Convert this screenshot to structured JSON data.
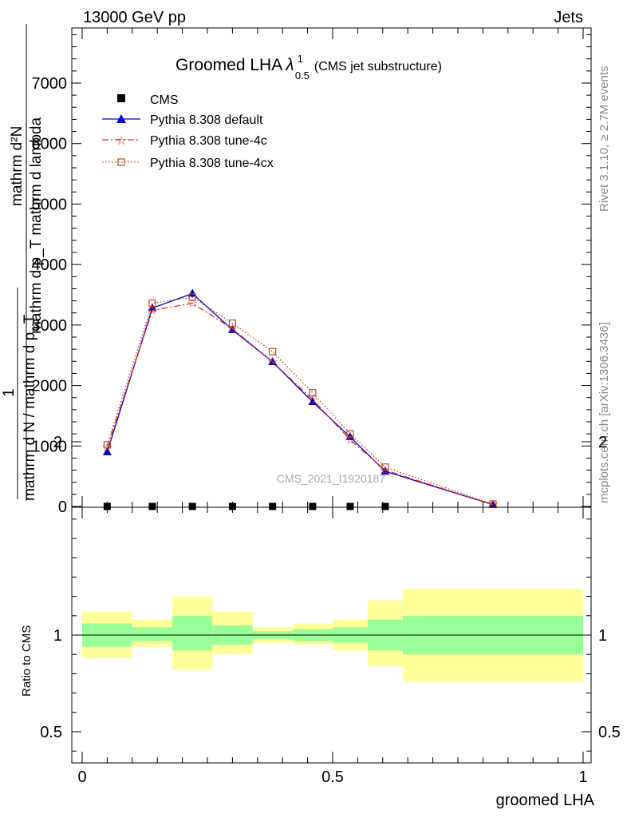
{
  "header": {
    "left": "13000 GeV pp",
    "right": "Jets",
    "side_top": "Rivet 3.1.10, ≥ 2.7M events",
    "side_bottom": "mcplots.cern.ch [arXiv:1306.3436]",
    "watermark": "CMS_2021_I1920187"
  },
  "title": {
    "prefix": "Groomed LHA",
    "lambda": "λ",
    "sup": "1",
    "sub": "0.5",
    "suffix": "(CMS jet substructure)"
  },
  "colors": {
    "default": "#0000cc",
    "tune4c": "#e03030",
    "tune4cx": "#c05020",
    "band_inner": "#99ff99",
    "band_outer": "#ffff99"
  },
  "chart_data": [
    {
      "type": "line",
      "name": "main",
      "ylabel_parts": {
        "numerator": "mathrm d²N",
        "denominator": "mathrm d p_T mathrm d lambda",
        "left_num": "1",
        "left_den": "mathrm d N / mathrm d p_T"
      },
      "xlim": [
        0,
        1
      ],
      "ylim": [
        0,
        8000
      ],
      "yticks": [
        {
          "v": 0,
          "label": "0"
        },
        {
          "v": 1000,
          "label": "1000"
        },
        {
          "v": 2000,
          "label": "2000"
        },
        {
          "v": 3000,
          "label": "3000"
        },
        {
          "v": 4000,
          "label": "4000"
        },
        {
          "v": 5000,
          "label": "5000"
        },
        {
          "v": 6000,
          "label": "6000"
        },
        {
          "v": 7000,
          "label": "7000"
        }
      ],
      "legend": [
        {
          "key": "cms",
          "label": "CMS"
        },
        {
          "key": "default",
          "label": "Pythia 8.308 default"
        },
        {
          "key": "tune4c",
          "label": "Pythia 8.308 tune-4c"
        },
        {
          "key": "tune4cx",
          "label": "Pythia 8.308 tune-4cx"
        }
      ],
      "cms": {
        "x": [
          0.05,
          0.14,
          0.22,
          0.3,
          0.38,
          0.46,
          0.535,
          0.605
        ],
        "y": [
          0,
          0,
          0,
          0,
          0,
          0,
          0,
          0
        ]
      },
      "series": [
        {
          "key": "default",
          "x": [
            0.05,
            0.14,
            0.22,
            0.3,
            0.38,
            0.46,
            0.535,
            0.605,
            0.82
          ],
          "y": [
            900,
            3280,
            3520,
            2920,
            2390,
            1730,
            1150,
            580,
            30
          ]
        },
        {
          "key": "tune4c",
          "x": [
            0.05,
            0.14,
            0.22,
            0.3,
            0.38,
            0.46,
            0.535,
            0.605,
            0.82
          ],
          "y": [
            980,
            3240,
            3360,
            2940,
            2390,
            1770,
            1100,
            600,
            30
          ]
        },
        {
          "key": "tune4cx",
          "x": [
            0.05,
            0.14,
            0.22,
            0.3,
            0.38,
            0.46,
            0.535,
            0.605,
            0.82
          ],
          "y": [
            1020,
            3360,
            3460,
            3030,
            2560,
            1880,
            1200,
            650,
            40
          ]
        }
      ]
    },
    {
      "type": "area",
      "name": "ratio",
      "ylabel": "Ratio to CMS",
      "xlabel": "groomed LHA",
      "xlim": [
        0,
        1
      ],
      "ylim": [
        0.35,
        2.25
      ],
      "xticks": [
        {
          "v": 0,
          "label": "0"
        },
        {
          "v": 0.5,
          "label": "0.5"
        },
        {
          "v": 1,
          "label": "1"
        }
      ],
      "yticks": [
        {
          "v": 0.5,
          "label": "0.5"
        },
        {
          "v": 1,
          "label": "1"
        },
        {
          "v": 2,
          "label": "2"
        }
      ],
      "bins": [
        {
          "lo": 0.0,
          "hi": 0.1,
          "in_lo": 0.94,
          "in_hi": 1.06,
          "out_lo": 0.88,
          "out_hi": 1.12
        },
        {
          "lo": 0.1,
          "hi": 0.18,
          "in_lo": 0.97,
          "in_hi": 1.04,
          "out_lo": 0.94,
          "out_hi": 1.08
        },
        {
          "lo": 0.18,
          "hi": 0.26,
          "in_lo": 0.92,
          "in_hi": 1.1,
          "out_lo": 0.82,
          "out_hi": 1.2
        },
        {
          "lo": 0.26,
          "hi": 0.34,
          "in_lo": 0.95,
          "in_hi": 1.05,
          "out_lo": 0.9,
          "out_hi": 1.12
        },
        {
          "lo": 0.34,
          "hi": 0.42,
          "in_lo": 0.98,
          "in_hi": 1.02,
          "out_lo": 0.96,
          "out_hi": 1.04
        },
        {
          "lo": 0.42,
          "hi": 0.5,
          "in_lo": 0.97,
          "in_hi": 1.03,
          "out_lo": 0.95,
          "out_hi": 1.06
        },
        {
          "lo": 0.5,
          "hi": 0.57,
          "in_lo": 0.96,
          "in_hi": 1.04,
          "out_lo": 0.92,
          "out_hi": 1.08
        },
        {
          "lo": 0.57,
          "hi": 0.64,
          "in_lo": 0.92,
          "in_hi": 1.08,
          "out_lo": 0.84,
          "out_hi": 1.18
        },
        {
          "lo": 0.64,
          "hi": 1.0,
          "in_lo": 0.9,
          "in_hi": 1.1,
          "out_lo": 0.76,
          "out_hi": 1.24
        }
      ]
    }
  ]
}
